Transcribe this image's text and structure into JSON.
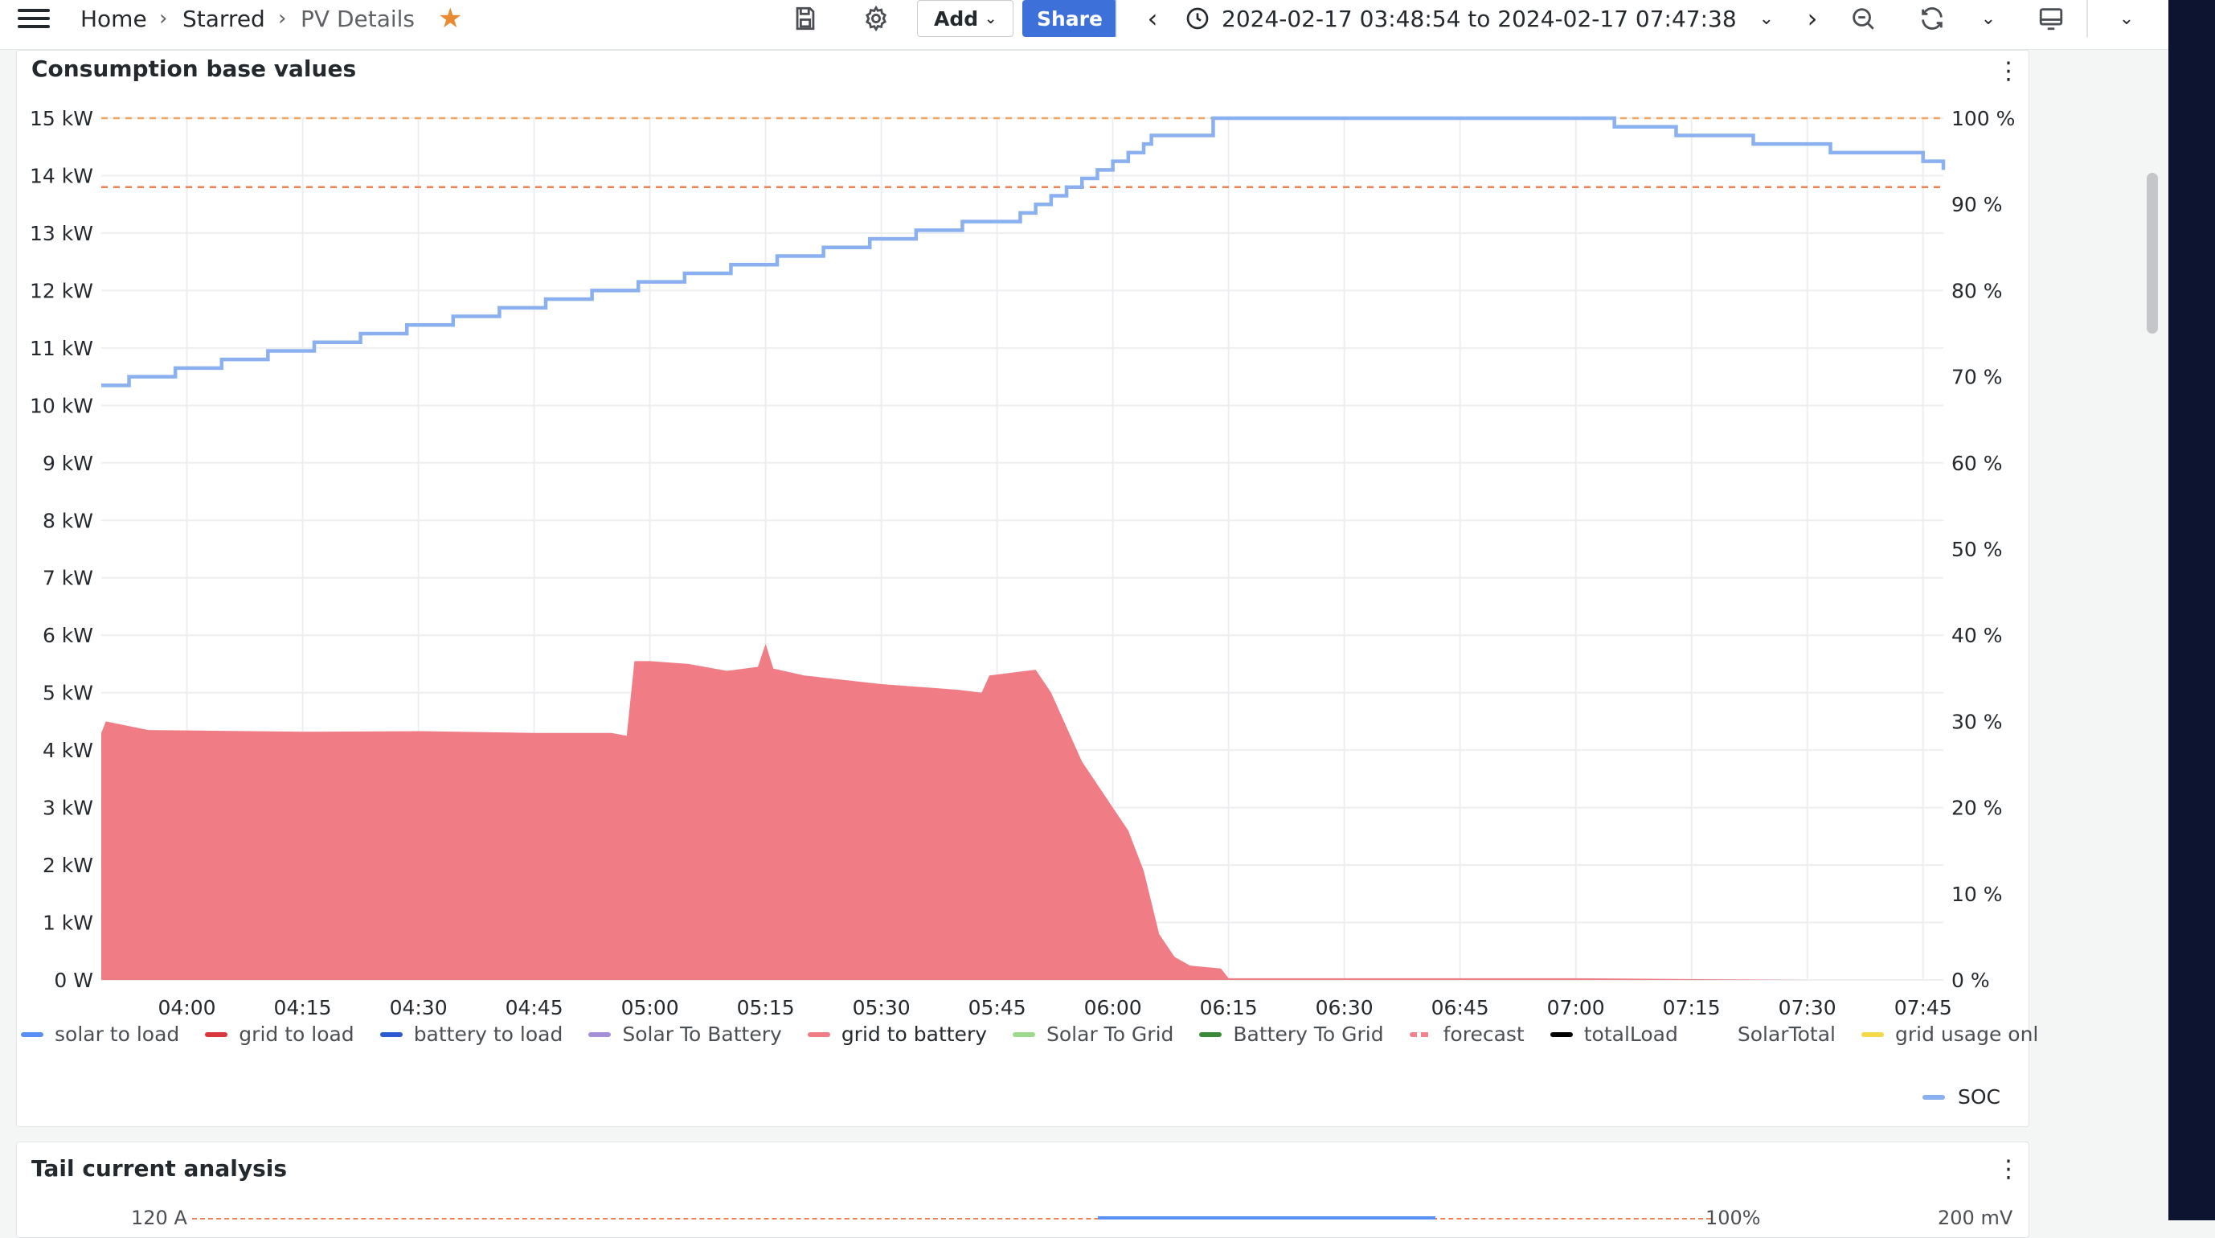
{
  "breadcrumb": {
    "home": "Home",
    "starred": "Starred",
    "current": "PV Details"
  },
  "toolbar": {
    "add_label": "Add",
    "share_label": "Share",
    "time_range": "2024-02-17 03:48:54 to 2024-02-17 07:47:38"
  },
  "panels": {
    "consumption": {
      "title": "Consumption base values"
    },
    "tail": {
      "title": "Tail current analysis",
      "left_tick": "120 A",
      "right_tick_1": "100%",
      "right_tick_2": "200 mV"
    }
  },
  "colors": {
    "accent": "#3d71d9",
    "star": "#e98a2e",
    "grid_to_battery": "#f07c86",
    "soc": "#8ab0f0",
    "threshold_orange": "#f6a35f",
    "threshold_red": "#f08052"
  },
  "chart_data": {
    "type": "area",
    "title": "Consumption base values",
    "x_ticks": [
      "04:00",
      "04:15",
      "04:30",
      "04:45",
      "05:00",
      "05:15",
      "05:30",
      "05:45",
      "06:00",
      "06:15",
      "06:30",
      "06:45",
      "07:00",
      "07:15",
      "07:30",
      "07:45"
    ],
    "y_left_ticks": [
      "0 W",
      "1 kW",
      "2 kW",
      "3 kW",
      "4 kW",
      "5 kW",
      "6 kW",
      "7 kW",
      "8 kW",
      "9 kW",
      "10 kW",
      "11 kW",
      "12 kW",
      "13 kW",
      "14 kW",
      "15 kW"
    ],
    "y_right_ticks": [
      "0 %",
      "10 %",
      "20 %",
      "30 %",
      "40 %",
      "50 %",
      "60 %",
      "70 %",
      "80 %",
      "90 %",
      "100 %"
    ],
    "xlim": [
      "03:48:54",
      "07:47:38"
    ],
    "ylim_left_kw": [
      0,
      15
    ],
    "ylim_right_pct": [
      0,
      100
    ],
    "grid": true,
    "thresholds": [
      {
        "axis": "right",
        "value_pct": 100,
        "color": "#f6a35f"
      },
      {
        "axis": "right",
        "value_pct": 92,
        "color": "#f08052"
      }
    ],
    "series": [
      {
        "name": "grid to battery",
        "axis": "left",
        "color": "#f07c86",
        "x": [
          "03:48:54",
          "03:49:30",
          "03:55",
          "04:15",
          "04:30",
          "04:45",
          "04:55",
          "04:57",
          "04:58",
          "05:00",
          "05:05",
          "05:10",
          "05:14",
          "05:15",
          "05:16",
          "05:20",
          "05:30",
          "05:40",
          "05:43",
          "05:44",
          "05:50",
          "05:52",
          "05:54",
          "05:56",
          "05:58",
          "06:00",
          "06:02",
          "06:04",
          "06:06",
          "06:08",
          "06:10",
          "06:14",
          "06:15",
          "06:30",
          "06:45",
          "07:00",
          "07:30",
          "07:47"
        ],
        "values": [
          4.3,
          4.5,
          4.35,
          4.32,
          4.33,
          4.3,
          4.3,
          4.25,
          5.55,
          5.55,
          5.5,
          5.38,
          5.45,
          5.85,
          5.42,
          5.3,
          5.15,
          5.05,
          5.0,
          5.3,
          5.4,
          5.0,
          4.4,
          3.8,
          3.4,
          3.0,
          2.6,
          1.9,
          0.8,
          0.4,
          0.25,
          0.2,
          0.03,
          0.03,
          0.03,
          0.03,
          0.0,
          0.0
        ]
      },
      {
        "name": "SOC",
        "axis": "right",
        "color": "#8ab0f0",
        "x": [
          "03:48:54",
          "03:52:30",
          "03:58:30",
          "04:04:30",
          "04:10:30",
          "04:16:30",
          "04:22:30",
          "04:28:30",
          "04:34:30",
          "04:40:30",
          "04:46:30",
          "04:52:30",
          "04:58:30",
          "05:04:30",
          "05:10:30",
          "05:16:30",
          "05:22:30",
          "05:28:30",
          "05:34:30",
          "05:40:30",
          "05:48:00",
          "05:50:00",
          "05:52:00",
          "05:54:00",
          "05:56:00",
          "05:58:00",
          "06:00:00",
          "06:02:00",
          "06:04:00",
          "06:05:00",
          "06:13:00",
          "07:05:00",
          "07:13:00",
          "07:23:00",
          "07:33:00",
          "07:45:00",
          "07:47:38"
        ],
        "values": [
          69,
          70,
          71,
          72,
          73,
          74,
          75,
          76,
          77,
          78,
          79,
          80,
          81,
          82,
          83,
          84,
          85,
          86,
          87,
          88,
          89,
          90,
          91,
          92,
          93,
          94,
          95,
          96,
          97,
          98,
          100,
          99,
          98,
          97,
          96,
          95,
          94
        ]
      }
    ],
    "legend": [
      "solar to load",
      "grid to load",
      "battery to load",
      "Solar To Battery",
      "grid to battery",
      "Solar To Grid",
      "Battery To Grid",
      "forecast",
      "totalLoad",
      "SolarTotal",
      "grid usage onl"
    ],
    "legend_colors": [
      "#5a8ff5",
      "#d9363e",
      "#2c5bd1",
      "#a58fd9",
      "#f07c86",
      "#9ed88c",
      "#3a8a3a",
      "#f2838d",
      "#000000",
      "",
      "#f5d94a"
    ],
    "legend_right": "SOC",
    "legend_placement": "bottom"
  }
}
